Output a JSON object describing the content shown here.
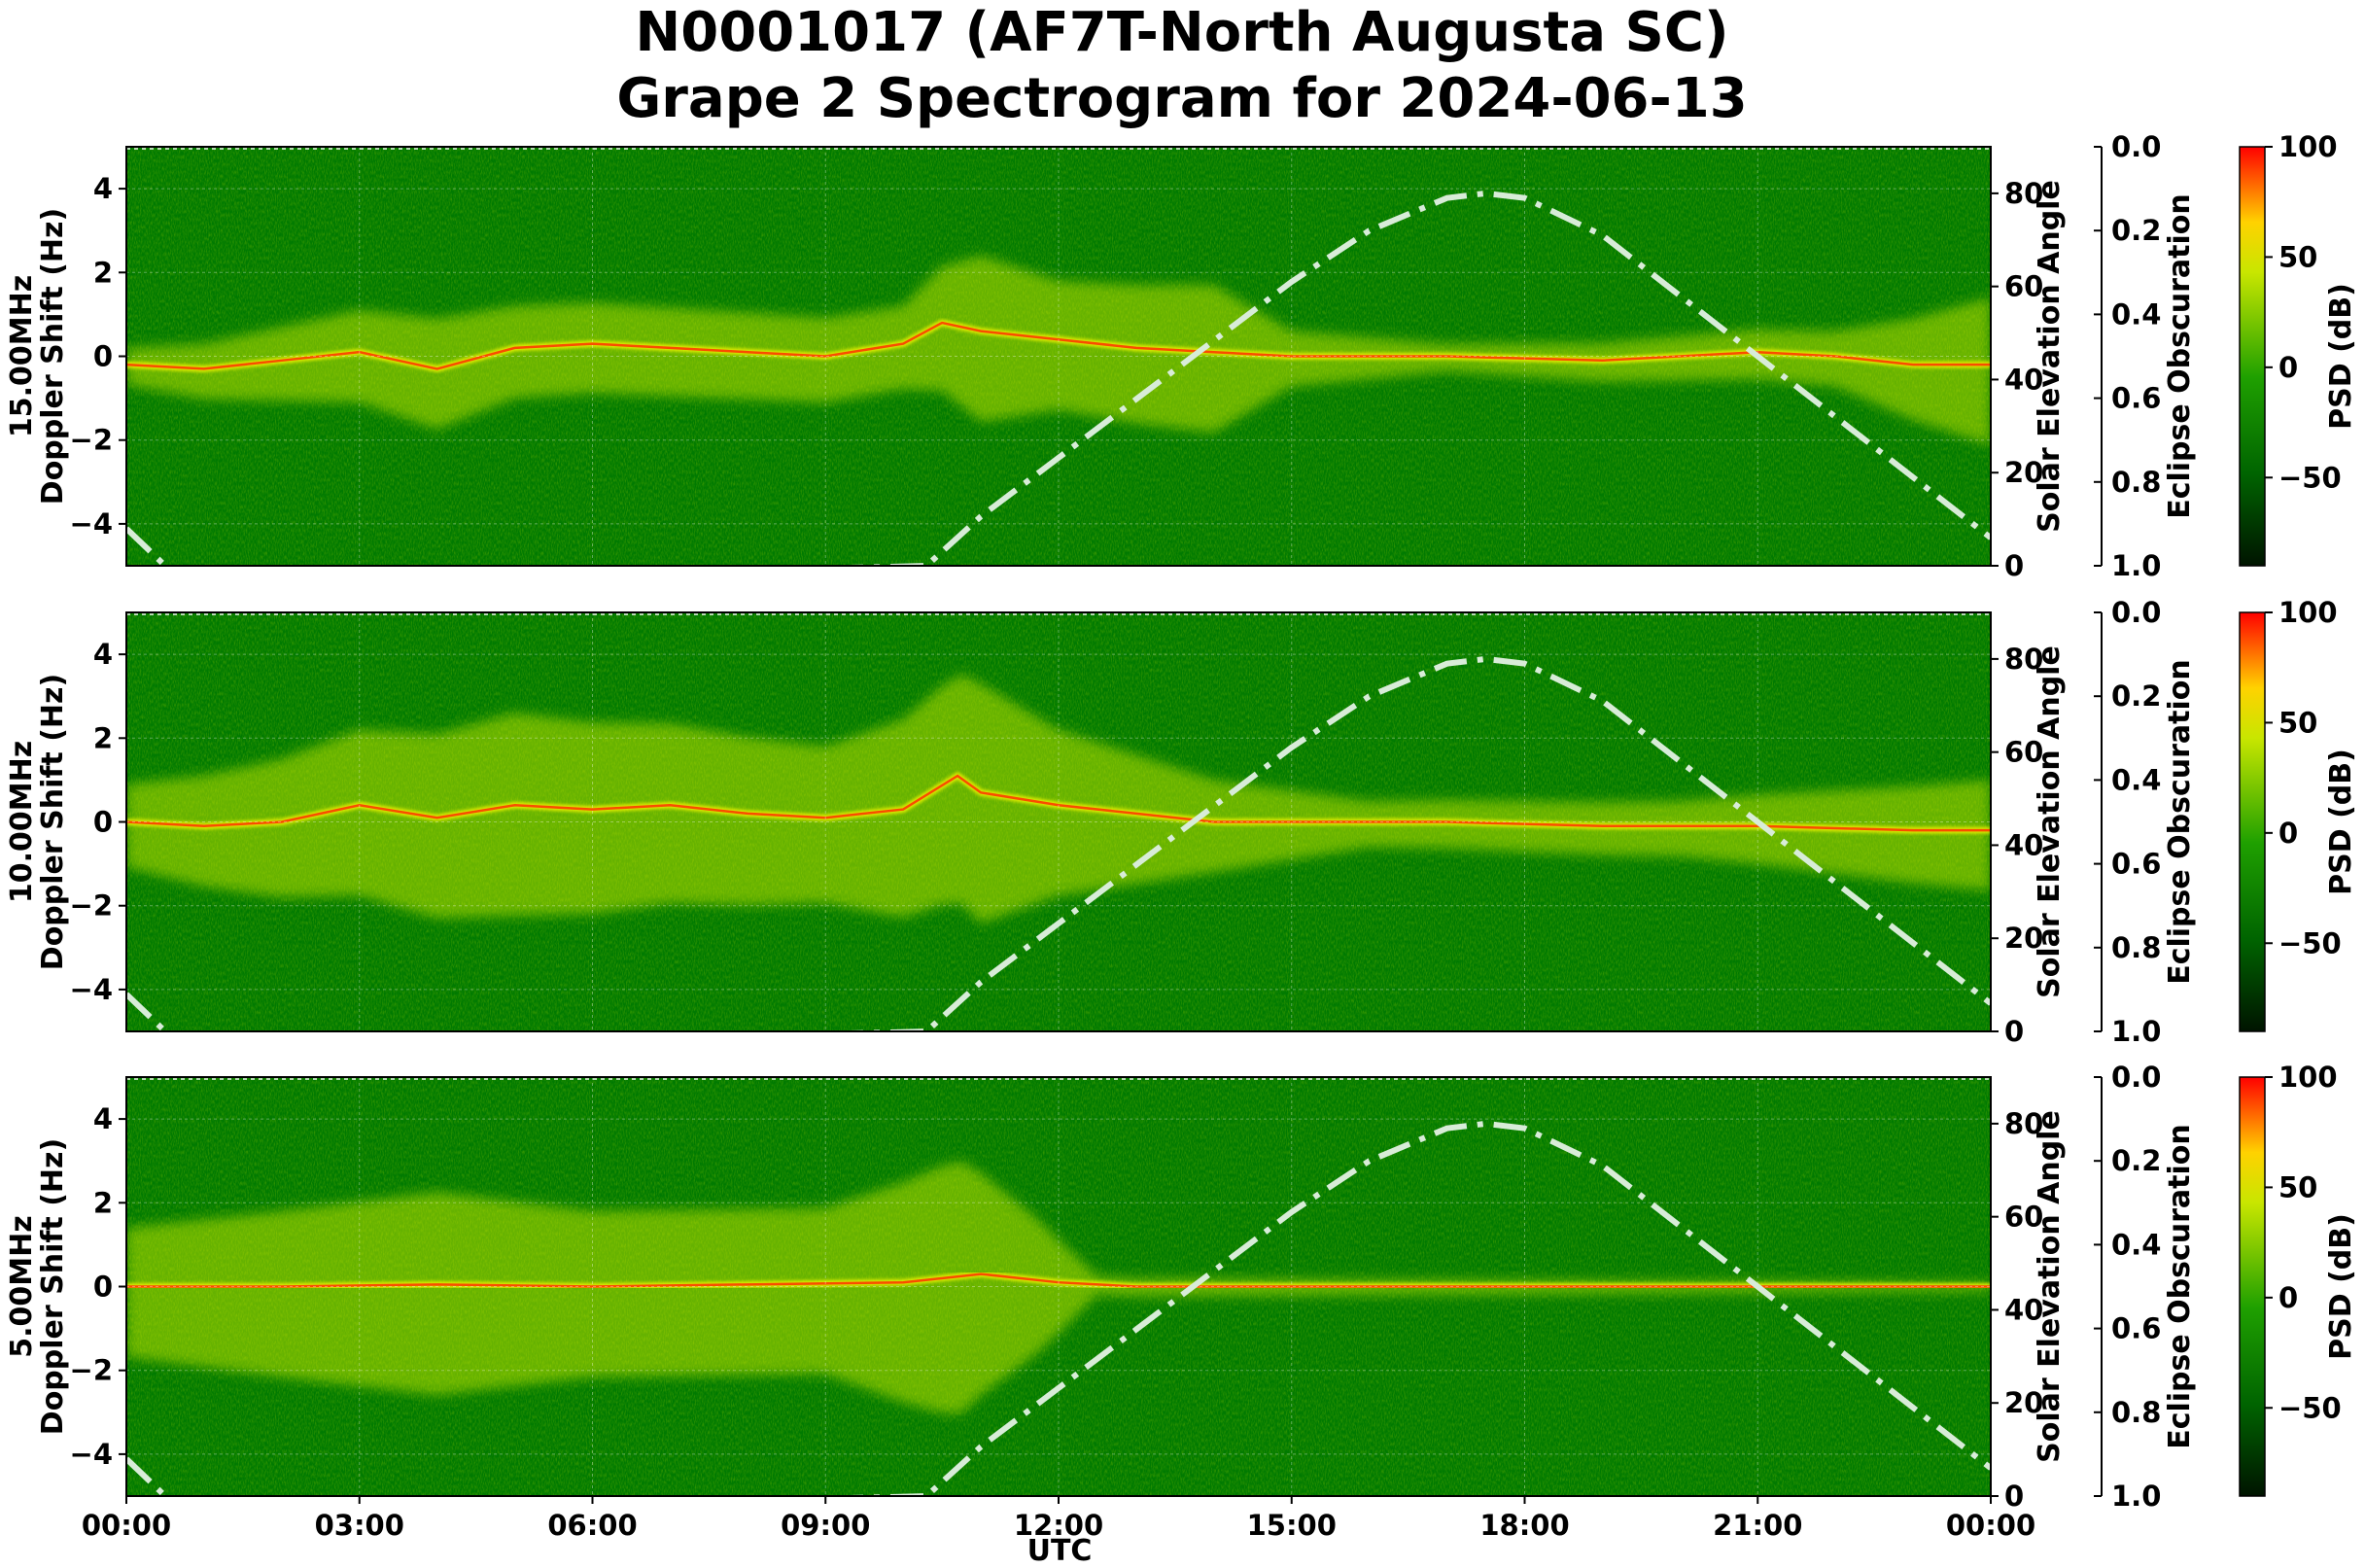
{
  "title_line1": "N0001017 (AF7T-North Augusta SC)",
  "title_line2": "Grape 2 Spectrogram for 2024-06-13",
  "colors": {
    "background_green": "#007a00",
    "trace_yellow": "#e8f000",
    "trace_red": "#ff3000",
    "solar_curve": "#d8ecd8",
    "colorbar_stops": [
      "#001400",
      "#006400",
      "#1fa000",
      "#c8e600",
      "#ffd200",
      "#ff0000"
    ]
  },
  "chart_data": [
    {
      "type": "heatmap",
      "panel": "15.00MHz",
      "ylabel_freq": "15.00MHz",
      "ylabel": "Doppler Shift (Hz)",
      "ylim": [
        -5,
        5
      ],
      "yticks": [
        "4",
        "2",
        "0",
        "−2",
        "−4"
      ],
      "right_axis_label": "Solar Elevation Angle",
      "right_axis_ticks": [
        "80",
        "60",
        "40",
        "20",
        "0"
      ],
      "eclipse_label": "Eclipse Obscuration",
      "eclipse_ticks": [
        "0.0",
        "0.2",
        "0.4",
        "0.6",
        "0.8",
        "1.0"
      ],
      "colorbar_label": "PSD (dB)",
      "colorbar_ticks": [
        "100",
        "50",
        "0",
        "−50"
      ],
      "doppler_trace": [
        [
          0,
          -0.2
        ],
        [
          1,
          -0.3
        ],
        [
          2,
          -0.1
        ],
        [
          3,
          0.1
        ],
        [
          4,
          -0.3
        ],
        [
          5,
          0.2
        ],
        [
          6,
          0.3
        ],
        [
          7,
          0.2
        ],
        [
          8,
          0.1
        ],
        [
          9,
          0.0
        ],
        [
          10,
          0.3
        ],
        [
          10.5,
          0.8
        ],
        [
          11,
          0.6
        ],
        [
          12,
          0.4
        ],
        [
          13,
          0.2
        ],
        [
          14,
          0.1
        ],
        [
          15,
          0.0
        ],
        [
          17,
          0.0
        ],
        [
          19,
          -0.1
        ],
        [
          21,
          0.1
        ],
        [
          22,
          0.0
        ],
        [
          23,
          -0.2
        ],
        [
          24,
          -0.2
        ]
      ],
      "spread": [
        [
          0,
          0.4
        ],
        [
          4,
          1.2
        ],
        [
          5,
          1.0
        ],
        [
          10,
          0.9
        ],
        [
          11,
          1.8
        ],
        [
          12,
          1.4
        ],
        [
          14,
          1.6
        ],
        [
          15,
          0.6
        ],
        [
          17,
          0.3
        ],
        [
          22,
          0.6
        ],
        [
          24,
          1.6
        ]
      ]
    },
    {
      "type": "heatmap",
      "panel": "10.00MHz",
      "ylabel_freq": "10.00MHz",
      "ylabel": "Doppler Shift (Hz)",
      "ylim": [
        -5,
        5
      ],
      "yticks": [
        "4",
        "2",
        "0",
        "−2",
        "−4"
      ],
      "right_axis_label": "Solar Elevation Angle",
      "right_axis_ticks": [
        "80",
        "60",
        "40",
        "20",
        "0"
      ],
      "eclipse_label": "Eclipse Obscuration",
      "eclipse_ticks": [
        "0.0",
        "0.2",
        "0.4",
        "0.6",
        "0.8",
        "1.0"
      ],
      "colorbar_label": "PSD (dB)",
      "colorbar_ticks": [
        "100",
        "50",
        "0",
        "−50"
      ],
      "doppler_trace": [
        [
          0,
          0.0
        ],
        [
          1,
          -0.1
        ],
        [
          2,
          0.0
        ],
        [
          3,
          0.4
        ],
        [
          4,
          0.1
        ],
        [
          5,
          0.4
        ],
        [
          6,
          0.3
        ],
        [
          7,
          0.4
        ],
        [
          8,
          0.2
        ],
        [
          9,
          0.1
        ],
        [
          10,
          0.3
        ],
        [
          10.7,
          1.1
        ],
        [
          11,
          0.7
        ],
        [
          12,
          0.4
        ],
        [
          13,
          0.2
        ],
        [
          14,
          0.0
        ],
        [
          17,
          0.0
        ],
        [
          19,
          -0.1
        ],
        [
          21,
          -0.1
        ],
        [
          23,
          -0.2
        ],
        [
          24,
          -0.2
        ]
      ],
      "spread": [
        [
          0,
          0.9
        ],
        [
          3,
          1.8
        ],
        [
          5,
          2.2
        ],
        [
          9,
          1.7
        ],
        [
          11,
          2.6
        ],
        [
          12,
          1.8
        ],
        [
          14,
          1.0
        ],
        [
          16,
          0.5
        ],
        [
          20,
          0.6
        ],
        [
          24,
          1.2
        ]
      ]
    },
    {
      "type": "heatmap",
      "panel": "5.00MHz",
      "ylabel_freq": "5.00MHz",
      "ylabel": "Doppler Shift (Hz)",
      "ylim": [
        -5,
        5
      ],
      "yticks": [
        "4",
        "2",
        "0",
        "−2",
        "−4"
      ],
      "right_axis_label": "Solar Elevation Angle",
      "right_axis_ticks": [
        "80",
        "60",
        "40",
        "20",
        "0"
      ],
      "eclipse_label": "Eclipse Obscuration",
      "eclipse_ticks": [
        "0.0",
        "0.2",
        "0.4",
        "0.6",
        "0.8",
        "1.0"
      ],
      "colorbar_label": "PSD (dB)",
      "colorbar_ticks": [
        "100",
        "50",
        "0",
        "−50"
      ],
      "doppler_trace": [
        [
          0,
          0.0
        ],
        [
          2,
          0.0
        ],
        [
          4,
          0.05
        ],
        [
          6,
          0.0
        ],
        [
          8,
          0.05
        ],
        [
          10,
          0.1
        ],
        [
          11,
          0.3
        ],
        [
          12,
          0.1
        ],
        [
          13,
          0.0
        ],
        [
          24,
          0.0
        ]
      ],
      "spread": [
        [
          0,
          1.4
        ],
        [
          2,
          1.8
        ],
        [
          4,
          2.2
        ],
        [
          6,
          1.8
        ],
        [
          9,
          1.8
        ],
        [
          10.7,
          2.8
        ],
        [
          11.7,
          1.5
        ],
        [
          12.5,
          0.2
        ],
        [
          24,
          0.1
        ]
      ]
    }
  ],
  "solar_elevation": {
    "x": [
      0,
      0.5,
      1,
      10.3,
      11,
      12,
      13,
      14,
      15,
      16,
      17,
      17.5,
      18,
      19,
      20,
      21,
      22,
      23,
      24
    ],
    "y": [
      8,
      0,
      -4,
      0,
      10.6,
      23.2,
      35.8,
      48.4,
      61,
      72,
      79,
      80,
      79,
      71,
      58,
      45,
      32,
      19,
      6
    ],
    "ylim": [
      0,
      90
    ]
  },
  "xaxis": {
    "ticks": [
      "00:00",
      "03:00",
      "06:00",
      "09:00",
      "12:00",
      "15:00",
      "18:00",
      "21:00",
      "00:00"
    ],
    "label": "UTC",
    "range_hours": [
      0,
      24
    ]
  }
}
